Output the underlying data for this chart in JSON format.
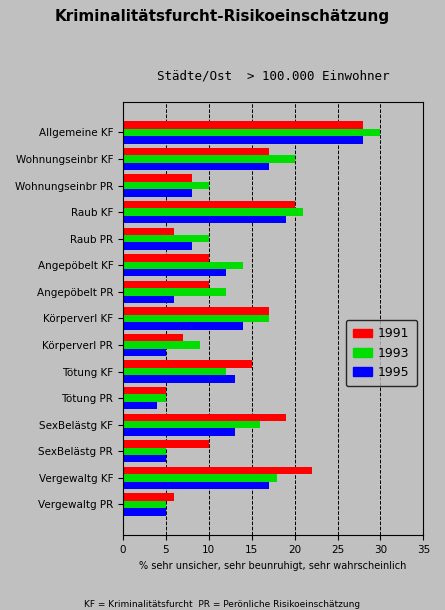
{
  "title": "Kriminalitätsfurcht-Risikoeinschätzung",
  "subtitle": "Städte/Ost  > 100.000 Einwohner",
  "xlabel": "% sehr unsicher, sehr beunruhigt, sehr wahrscheinlich",
  "footnote": "KF = Kriminalitätsfurcht  PR = Perönliche Risikoeinschätzung",
  "categories": [
    "Allgemeine KF",
    "Wohnungseinbr KF",
    "Wohnungseinbr PR",
    "Raub KF",
    "Raub PR",
    "Angepöbelt KF",
    "Angepöbelt PR",
    "Körperverl KF",
    "Körperverl PR",
    "Tötung KF",
    "Tötung PR",
    "SexBelästg KF",
    "SexBelästg PR",
    "Vergewaltg KF",
    "Vergewaltg PR"
  ],
  "values_1991": [
    28,
    17,
    8,
    20,
    6,
    10,
    10,
    17,
    7,
    15,
    5,
    19,
    10,
    22,
    6
  ],
  "values_1993": [
    30,
    20,
    10,
    21,
    10,
    14,
    12,
    17,
    9,
    12,
    5,
    16,
    5,
    18,
    5
  ],
  "values_1995": [
    28,
    17,
    8,
    19,
    8,
    12,
    6,
    14,
    5,
    13,
    4,
    13,
    5,
    17,
    5
  ],
  "color_1991": "#ff0000",
  "color_1993": "#00dd00",
  "color_1995": "#0000ff",
  "bg_color": "#c0c0c0",
  "plot_bg_color": "#c0c0c0",
  "xlim": [
    0,
    35
  ],
  "xticks": [
    0,
    5,
    10,
    15,
    20,
    25,
    30,
    35
  ],
  "bar_height": 0.28,
  "title_fontsize": 11,
  "subtitle_fontsize": 9,
  "tick_fontsize": 7.5,
  "legend_labels": [
    "1991",
    "1993",
    "1995"
  ]
}
